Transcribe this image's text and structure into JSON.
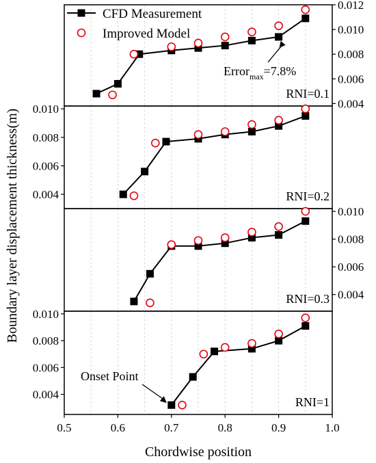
{
  "chart_data": {
    "type": "line",
    "xlabel": "Chordwise position",
    "ylabel": "Boundary layer displacement thickness(m)",
    "xlim": [
      0.5,
      1.0
    ],
    "x_ticks": [
      "0.5",
      "0.6",
      "0.7",
      "0.8",
      "0.9",
      "1.0"
    ],
    "legend": {
      "placement": "top-left",
      "entries": [
        "CFD Measurement",
        "Improved Model"
      ]
    },
    "colors": {
      "cfd": "#000000",
      "model": "#e3000f"
    },
    "panels": [
      {
        "label": "RNI=0.1",
        "yaxis_side": "right",
        "ylim": [
          0.0038,
          0.012
        ],
        "y_ticks": [
          "0.004",
          "0.006",
          "0.008",
          "0.010",
          "0.012"
        ],
        "annotation": {
          "prefix": "Error",
          "sub": "max",
          "suffix": "=7.8%"
        },
        "series": [
          {
            "name": "CFD Measurement",
            "x": [
              0.56,
              0.6,
              0.64,
              0.7,
              0.75,
              0.8,
              0.85,
              0.9,
              0.95
            ],
            "y": [
              0.0048,
              0.0056,
              0.008,
              0.0083,
              0.0085,
              0.0087,
              0.0091,
              0.0094,
              0.0109
            ]
          },
          {
            "name": "Improved Model",
            "x": [
              0.59,
              0.63,
              0.7,
              0.75,
              0.8,
              0.85,
              0.9,
              0.95
            ],
            "y": [
              0.0047,
              0.008,
              0.0086,
              0.0089,
              0.0094,
              0.0098,
              0.0103,
              0.0116
            ]
          }
        ]
      },
      {
        "label": "RNI=0.2",
        "yaxis_side": "left",
        "ylim": [
          0.003,
          0.0102
        ],
        "y_ticks": [
          "0.004",
          "0.006",
          "0.008",
          "0.010"
        ],
        "series": [
          {
            "name": "CFD Measurement",
            "x": [
              0.61,
              0.65,
              0.69,
              0.75,
              0.8,
              0.85,
              0.9,
              0.95
            ],
            "y": [
              0.004,
              0.0056,
              0.0077,
              0.0079,
              0.0082,
              0.0084,
              0.0088,
              0.0095
            ]
          },
          {
            "name": "Improved Model",
            "x": [
              0.63,
              0.67,
              0.75,
              0.8,
              0.85,
              0.9,
              0.95
            ],
            "y": [
              0.0039,
              0.0076,
              0.0082,
              0.0084,
              0.0089,
              0.0092,
              0.01
            ]
          }
        ]
      },
      {
        "label": "RNI=0.3",
        "yaxis_side": "right",
        "ylim": [
          0.0028,
          0.0102
        ],
        "y_ticks": [
          "0.004",
          "0.006",
          "0.008",
          "0.010"
        ],
        "series": [
          {
            "name": "CFD Measurement",
            "x": [
              0.63,
              0.66,
              0.7,
              0.75,
              0.8,
              0.85,
              0.9,
              0.95
            ],
            "y": [
              0.0035,
              0.0055,
              0.0075,
              0.0075,
              0.0077,
              0.0081,
              0.0083,
              0.0093
            ]
          },
          {
            "name": "Improved Model",
            "x": [
              0.66,
              0.7,
              0.75,
              0.8,
              0.85,
              0.9,
              0.95
            ],
            "y": [
              0.0034,
              0.0076,
              0.0079,
              0.0081,
              0.0085,
              0.0089,
              0.01
            ]
          }
        ]
      },
      {
        "label": "RNI=1",
        "yaxis_side": "left",
        "ylim": [
          0.0025,
          0.0102
        ],
        "y_ticks": [
          "0.004",
          "0.006",
          "0.008",
          "0.010"
        ],
        "annotation": {
          "text": "Onset Point"
        },
        "series": [
          {
            "name": "CFD Measurement",
            "x": [
              0.7,
              0.74,
              0.78,
              0.85,
              0.9,
              0.95
            ],
            "y": [
              0.0032,
              0.0053,
              0.0072,
              0.0074,
              0.008,
              0.0091
            ]
          },
          {
            "name": "Improved Model",
            "x": [
              0.72,
              0.76,
              0.8,
              0.85,
              0.9,
              0.95
            ],
            "y": [
              0.0032,
              0.007,
              0.0075,
              0.0078,
              0.0085,
              0.0097
            ]
          }
        ]
      }
    ]
  }
}
